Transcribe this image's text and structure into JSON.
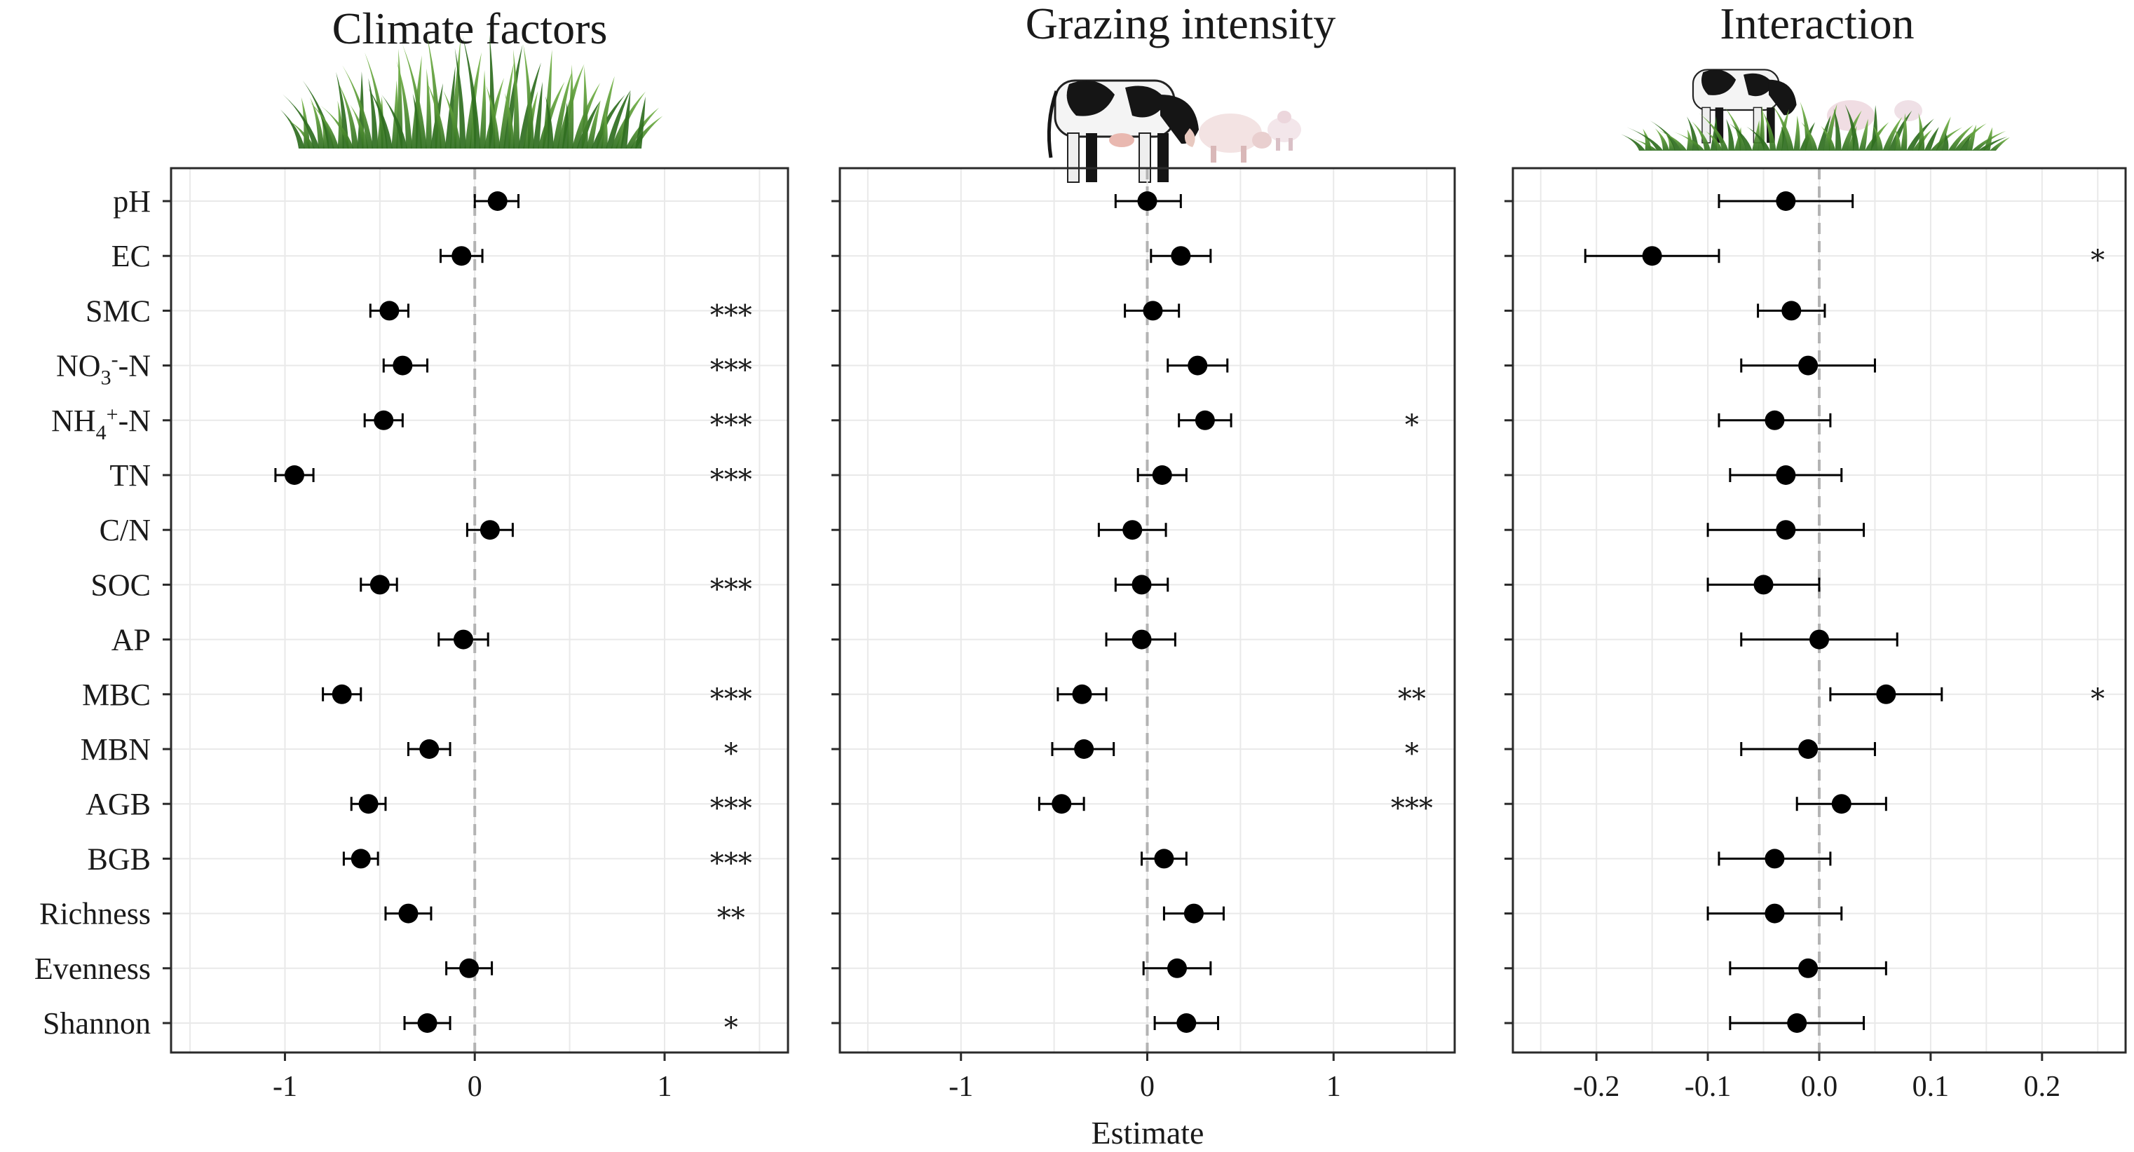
{
  "x_axis_label": "Estimate",
  "colors": {
    "point": "#000000",
    "grid": "#e9e9e9",
    "zero_line": "#b3b3b3",
    "grass": "#3f8a2c"
  },
  "illustrations": [
    "grass-tuft-icon",
    "cow-and-sheep-icon",
    "cow-sheep-on-grass-icon"
  ],
  "chart_data": [
    {
      "type": "scatter",
      "subtype": "forest-plot",
      "title": "Climate factors",
      "variables": [
        "pH",
        "EC",
        "SMC",
        "NO3--N",
        "NH4+-N",
        "TN",
        "C/N",
        "SOC",
        "AP",
        "MBC",
        "MBN",
        "AGB",
        "BGB",
        "Richness",
        "Evenness",
        "Shannon"
      ],
      "xlim": [
        -1.6,
        1.65
      ],
      "xticks": [
        -1,
        0,
        1
      ],
      "xtick_labels": [
        "-1",
        "0",
        "1"
      ],
      "estimates": [
        0.12,
        -0.07,
        -0.45,
        -0.38,
        -0.48,
        -0.95,
        0.08,
        -0.5,
        -0.06,
        -0.7,
        -0.24,
        -0.56,
        -0.6,
        -0.35,
        -0.03,
        -0.25
      ],
      "ci_low": [
        0.0,
        -0.18,
        -0.55,
        -0.48,
        -0.58,
        -1.05,
        -0.04,
        -0.6,
        -0.19,
        -0.8,
        -0.35,
        -0.65,
        -0.69,
        -0.47,
        -0.15,
        -0.37
      ],
      "ci_high": [
        0.23,
        0.04,
        -0.35,
        -0.25,
        -0.38,
        -0.85,
        0.2,
        -0.41,
        0.07,
        -0.6,
        -0.13,
        -0.47,
        -0.51,
        -0.23,
        0.09,
        -0.13
      ],
      "significance": [
        "",
        "",
        "***",
        "***",
        "***",
        "***",
        "",
        "***",
        "",
        "***",
        "*",
        "***",
        "***",
        "**",
        "",
        "*"
      ]
    },
    {
      "type": "scatter",
      "subtype": "forest-plot",
      "title": "Grazing intensity",
      "variables": [
        "pH",
        "EC",
        "SMC",
        "NO3--N",
        "NH4+-N",
        "TN",
        "C/N",
        "SOC",
        "AP",
        "MBC",
        "MBN",
        "AGB",
        "BGB",
        "Richness",
        "Evenness",
        "Shannon"
      ],
      "xlim": [
        -1.65,
        1.65
      ],
      "xticks": [
        -1,
        0,
        1
      ],
      "xtick_labels": [
        "-1",
        "0",
        "1"
      ],
      "estimates": [
        0.0,
        0.18,
        0.03,
        0.27,
        0.31,
        0.08,
        -0.08,
        -0.03,
        -0.03,
        -0.35,
        -0.34,
        -0.46,
        0.09,
        0.25,
        0.16,
        0.21
      ],
      "ci_low": [
        -0.17,
        0.02,
        -0.12,
        0.11,
        0.17,
        -0.05,
        -0.26,
        -0.17,
        -0.22,
        -0.48,
        -0.51,
        -0.58,
        -0.03,
        0.09,
        -0.02,
        0.04
      ],
      "ci_high": [
        0.18,
        0.34,
        0.17,
        0.43,
        0.45,
        0.21,
        0.1,
        0.11,
        0.15,
        -0.22,
        -0.18,
        -0.34,
        0.21,
        0.41,
        0.34,
        0.38
      ],
      "significance": [
        "",
        "",
        "",
        "",
        "*",
        "",
        "",
        "",
        "",
        "**",
        "*",
        "***",
        "",
        "",
        "",
        ""
      ]
    },
    {
      "type": "scatter",
      "subtype": "forest-plot",
      "title": "Interaction",
      "variables": [
        "pH",
        "EC",
        "SMC",
        "NO3--N",
        "NH4+-N",
        "TN",
        "C/N",
        "SOC",
        "AP",
        "MBC",
        "MBN",
        "AGB",
        "BGB",
        "Richness",
        "Evenness",
        "Shannon"
      ],
      "xlim": [
        -0.275,
        0.275
      ],
      "xticks": [
        -0.2,
        -0.1,
        0.0,
        0.1,
        0.2
      ],
      "xtick_labels": [
        "-0.2",
        "-0.1",
        "0.0",
        "0.1",
        "0.2"
      ],
      "estimates": [
        -0.03,
        -0.15,
        -0.025,
        -0.01,
        -0.04,
        -0.03,
        -0.03,
        -0.05,
        0.0,
        0.06,
        -0.01,
        0.02,
        -0.04,
        -0.04,
        -0.01,
        -0.02
      ],
      "ci_low": [
        -0.09,
        -0.21,
        -0.055,
        -0.07,
        -0.09,
        -0.08,
        -0.1,
        -0.1,
        -0.07,
        0.01,
        -0.07,
        -0.02,
        -0.09,
        -0.1,
        -0.08,
        -0.08
      ],
      "ci_high": [
        0.03,
        -0.09,
        0.005,
        0.05,
        0.01,
        0.02,
        0.04,
        0.0,
        0.07,
        0.11,
        0.05,
        0.06,
        0.01,
        0.02,
        0.06,
        0.04
      ],
      "significance": [
        "",
        "*",
        "",
        "",
        "",
        "",
        "",
        "",
        "",
        "*",
        "",
        "",
        "",
        "",
        "",
        ""
      ]
    }
  ]
}
